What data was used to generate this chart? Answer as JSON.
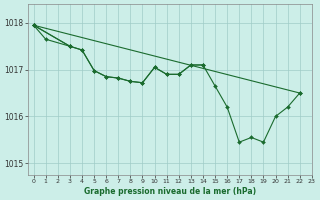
{
  "title": "Graphe pression niveau de la mer (hPa)",
  "background_color": "#cceee8",
  "line_color": "#1a6b2e",
  "grid_color": "#a0ccc8",
  "xlim": [
    -0.5,
    23
  ],
  "ylim": [
    1014.75,
    1018.4
  ],
  "yticks": [
    1015,
    1016,
    1017,
    1018
  ],
  "xtick_labels": [
    "0",
    "1",
    "2",
    "3",
    "4",
    "5",
    "6",
    "7",
    "8",
    "9",
    "10",
    "11",
    "12",
    "13",
    "14",
    "15",
    "16",
    "17",
    "18",
    "19",
    "20",
    "21",
    "22",
    "23"
  ],
  "line1_x": [
    0,
    3
  ],
  "line1_y": [
    1017.95,
    1017.5
  ],
  "line2_x": [
    0,
    1,
    3,
    4,
    5,
    6,
    7,
    8,
    9,
    10,
    11,
    12,
    13,
    14
  ],
  "line2_y": [
    1017.95,
    1017.65,
    1017.5,
    1017.42,
    1016.98,
    1016.85,
    1016.82,
    1016.75,
    1016.72,
    1017.05,
    1016.9,
    1016.9,
    1017.1,
    1017.1
  ],
  "line3_x": [
    0,
    22
  ],
  "line3_y": [
    1017.95,
    1016.5
  ],
  "line4_x": [
    0,
    3,
    4,
    5,
    6,
    7,
    8,
    9,
    10,
    11,
    12,
    13,
    14,
    15,
    16,
    17,
    18,
    19,
    20,
    21,
    22
  ],
  "line4_y": [
    1017.95,
    1017.5,
    1017.42,
    1016.98,
    1016.85,
    1016.82,
    1016.75,
    1016.72,
    1017.05,
    1016.9,
    1016.9,
    1017.1,
    1017.1,
    1016.65,
    1016.2,
    1015.45,
    1015.55,
    1015.45,
    1016.0,
    1016.2,
    1016.5
  ]
}
